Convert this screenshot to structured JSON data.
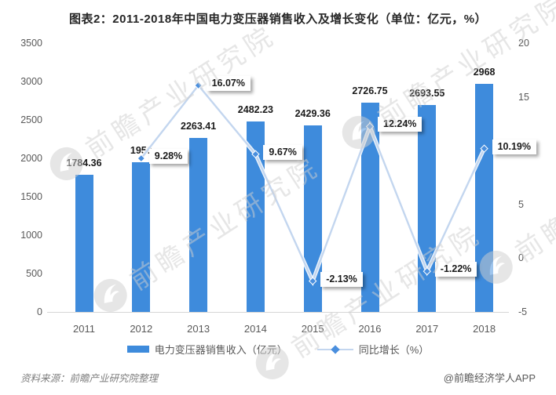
{
  "title": "图表2：2011-2018年中国电力变压器销售收入及增长变化（单位：亿元，%）",
  "chart_data": {
    "type": "bar",
    "title": "图表2：2011-2018年中国电力变压器销售收入及增长变化（单位：亿元，%）",
    "categories": [
      "2011",
      "2012",
      "2013",
      "2014",
      "2015",
      "2016",
      "2017",
      "2018"
    ],
    "series": [
      {
        "name": "电力变压器销售收入（亿元）",
        "type": "bar",
        "values": [
          1784.36,
          1950,
          2263.41,
          2482.23,
          2429.36,
          2726.75,
          2693.55,
          2968
        ],
        "labels": [
          "1784.36",
          "1950",
          "2263.41",
          "2482.23",
          "2429.36",
          "2726.75",
          "2693.55",
          "2968"
        ]
      },
      {
        "name": "同比增长（%）",
        "type": "line",
        "values": [
          null,
          9.28,
          16.07,
          9.67,
          -2.13,
          12.24,
          -1.22,
          10.19
        ],
        "labels": [
          null,
          "9.28%",
          "16.07%",
          "9.67%",
          "-2.13%",
          "12.24%",
          "-1.22%",
          "10.19%"
        ]
      }
    ],
    "left_axis": {
      "min": 0,
      "max": 3500,
      "step": 500,
      "ticks": [
        "3500",
        "3000",
        "2500",
        "2000",
        "1500",
        "1000",
        "500",
        "0"
      ]
    },
    "right_axis": {
      "min": -5,
      "max": 20,
      "step": 5,
      "ticks": [
        "20",
        "15",
        "10",
        "5",
        "0",
        "-5"
      ]
    },
    "grid": false,
    "legend_position": "bottom"
  },
  "legend": {
    "bar_label": "电力变压器销售收入（亿元）",
    "line_label": "同比增长（%）"
  },
  "footer": {
    "source": "资料来源：前瞻产业研究院整理",
    "credit": "@前瞻经济学人APP"
  },
  "watermark": {
    "text": "前瞻产业研究院"
  },
  "colors": {
    "bar": "#3E8BDC",
    "line": "#C3D6EF",
    "marker": "#4A8FDE",
    "title_text": "#262626",
    "label_text": "#1A1A1A",
    "axis_text": "#595959",
    "axis_line": "#D6D6D6",
    "watermark": "#CFCFCF"
  }
}
